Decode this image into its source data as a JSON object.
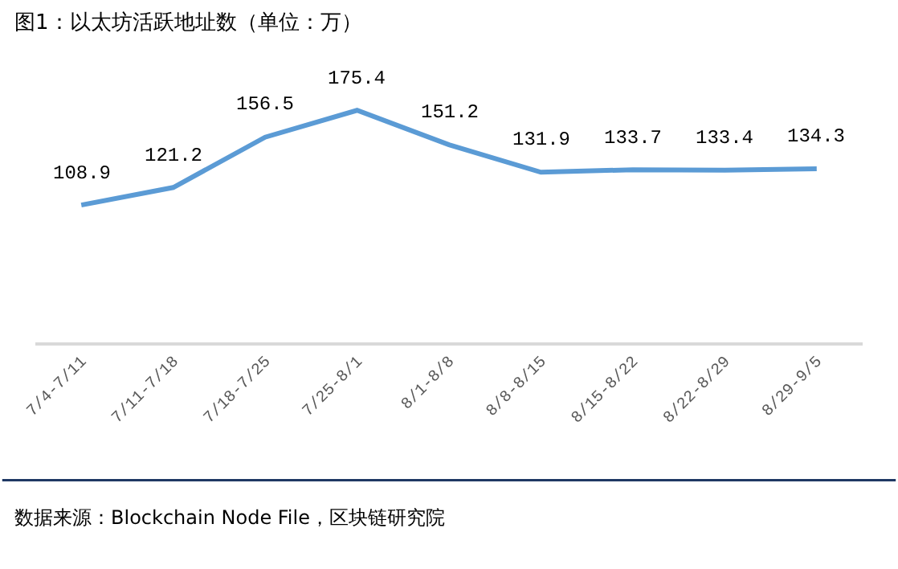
{
  "chart_data": {
    "type": "line",
    "title": "图1：以太坊活跃地址数（单位：万）",
    "categories": [
      "7/4-7/11",
      "7/11-7/18",
      "7/18-7/25",
      "7/25-8/1",
      "8/1-8/8",
      "8/8-8/15",
      "8/15-8/22",
      "8/22-8/29",
      "8/29-9/5"
    ],
    "series": [
      {
        "color": "#5b9bd5",
        "values": [
          108.9,
          121.2,
          156.5,
          175.4,
          151.2,
          131.9,
          133.7,
          133.4,
          134.3
        ]
      }
    ],
    "data_labels": true,
    "legend": false,
    "marker": "none",
    "line_style": "solid",
    "annotations": [
      "数据来源：Blockchain Node File，区块链研究院"
    ]
  }
}
